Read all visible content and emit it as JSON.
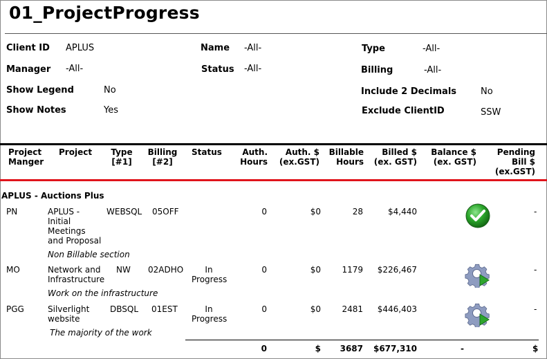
{
  "report": {
    "title": "01_ProjectProgress"
  },
  "parameters": {
    "client_id": {
      "label": "Client ID",
      "value": "APLUS"
    },
    "name": {
      "label": "Name",
      "value": "-All-"
    },
    "type": {
      "label": "Type",
      "value": "-All-"
    },
    "manager": {
      "label": "Manager",
      "value": "-All-"
    },
    "status": {
      "label": "Status",
      "value": "-All-"
    },
    "billing": {
      "label": "Billing",
      "value": "-All-"
    },
    "show_legend": {
      "label": "Show Legend",
      "value": "No"
    },
    "include_decimals": {
      "label": "Include 2 Decimals",
      "value": "No"
    },
    "show_notes": {
      "label": "Show Notes",
      "value": "Yes"
    },
    "exclude_client": {
      "label": "Exclude ClientID",
      "value": "SSW"
    }
  },
  "columns": {
    "manager": [
      "Project",
      "Manger"
    ],
    "project": [
      "Project"
    ],
    "type": [
      "Type",
      "[#1]"
    ],
    "billing": [
      "Billing",
      "[#2]"
    ],
    "status": [
      "Status"
    ],
    "auth_hours": [
      "Auth.",
      "Hours"
    ],
    "auth_dollars": [
      "Auth. $",
      "(ex.GST)"
    ],
    "billable_hours": [
      "Billable",
      "Hours"
    ],
    "billed": [
      "Billed $",
      "(ex. GST)"
    ],
    "balance": [
      "Balance $",
      "(ex. GST)"
    ],
    "pending": [
      "Pending",
      "Bill $",
      "(ex.GST)"
    ]
  },
  "client_group": {
    "label": "APLUS - Auctions Plus"
  },
  "rows": [
    {
      "manager": "PN",
      "project": [
        "APLUS -",
        "Initial",
        "Meetings",
        "and Proposal"
      ],
      "type": "WEBSQL",
      "billing": "05OFF",
      "status": [],
      "auth_hours": "0",
      "auth_dollars": "$0",
      "billable_hours": "28",
      "billed": "$4,440",
      "balance_icon": "green-check-icon",
      "pending": "-",
      "note": "Non Billable section"
    },
    {
      "manager": "MO",
      "project": [
        "Network and",
        "Infrastructure"
      ],
      "type": "NW",
      "billing": "02ADHO",
      "status": [
        "In",
        "Progress"
      ],
      "auth_hours": "0",
      "auth_dollars": "$0",
      "billable_hours": "1179",
      "billed": "$226,467",
      "balance_icon": "gear-in-progress-icon",
      "pending": "-",
      "note": "Work on the infrastructure"
    },
    {
      "manager": "PGG",
      "project": [
        "Silverlight",
        "website"
      ],
      "type": "DBSQL",
      "billing": "01EST",
      "status": [
        "In",
        "Progress"
      ],
      "auth_hours": "0",
      "auth_dollars": "$0",
      "billable_hours": "2481",
      "billed": "$446,403",
      "balance_icon": "gear-in-progress-icon",
      "pending": "-",
      "note": "The majority of the work"
    }
  ],
  "totals": {
    "auth_hours": "0",
    "auth_dollars": "$",
    "billable_hours": "3687",
    "billed": "$677,310",
    "balance": "-",
    "pending": "$"
  },
  "colors": {
    "accent_red": "#e0141c",
    "check_green": "#2aa52a",
    "gear_blue": "#7f8fb5"
  }
}
